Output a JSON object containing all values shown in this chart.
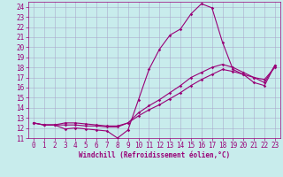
{
  "title": "",
  "xlabel": "Windchill (Refroidissement éolien,°C)",
  "bg_color": "#c8ecec",
  "line_color": "#990077",
  "grid_color": "#aaaacc",
  "xlim": [
    -0.5,
    23.5
  ],
  "ylim": [
    11,
    24.5
  ],
  "xticks": [
    0,
    1,
    2,
    3,
    4,
    5,
    6,
    7,
    8,
    9,
    10,
    11,
    12,
    13,
    14,
    15,
    16,
    17,
    18,
    19,
    20,
    21,
    22,
    23
  ],
  "yticks": [
    11,
    12,
    13,
    14,
    15,
    16,
    17,
    18,
    19,
    20,
    21,
    22,
    23,
    24
  ],
  "curve1_x": [
    0,
    1,
    2,
    3,
    4,
    5,
    6,
    7,
    8,
    9,
    10,
    11,
    12,
    13,
    14,
    15,
    16,
    17,
    18,
    19,
    20,
    21,
    22,
    23
  ],
  "curve1_y": [
    12.5,
    12.3,
    12.3,
    11.9,
    12.0,
    11.9,
    11.8,
    11.7,
    11.0,
    11.8,
    14.8,
    17.8,
    19.8,
    21.2,
    21.8,
    23.3,
    24.3,
    23.9,
    20.5,
    17.8,
    17.3,
    16.5,
    16.2,
    18.2
  ],
  "curve2_x": [
    0,
    1,
    2,
    3,
    4,
    5,
    6,
    7,
    8,
    9,
    10,
    11,
    12,
    13,
    14,
    15,
    16,
    17,
    18,
    19,
    20,
    21,
    22,
    23
  ],
  "curve2_y": [
    12.5,
    12.3,
    12.3,
    12.3,
    12.3,
    12.2,
    12.2,
    12.1,
    12.1,
    12.5,
    13.2,
    13.8,
    14.3,
    14.9,
    15.5,
    16.2,
    16.8,
    17.3,
    17.8,
    17.6,
    17.3,
    17.0,
    16.8,
    18.0
  ],
  "curve3_x": [
    0,
    1,
    2,
    3,
    4,
    5,
    6,
    7,
    8,
    9,
    10,
    11,
    12,
    13,
    14,
    15,
    16,
    17,
    18,
    19,
    20,
    21,
    22,
    23
  ],
  "curve3_y": [
    12.5,
    12.3,
    12.3,
    12.5,
    12.5,
    12.4,
    12.3,
    12.2,
    12.2,
    12.5,
    13.5,
    14.2,
    14.8,
    15.5,
    16.2,
    17.0,
    17.5,
    18.0,
    18.3,
    18.0,
    17.5,
    17.0,
    16.5,
    18.2
  ],
  "tick_fontsize": 5.5,
  "xlabel_fontsize": 5.5,
  "marker_size": 1.8,
  "linewidth": 0.8
}
